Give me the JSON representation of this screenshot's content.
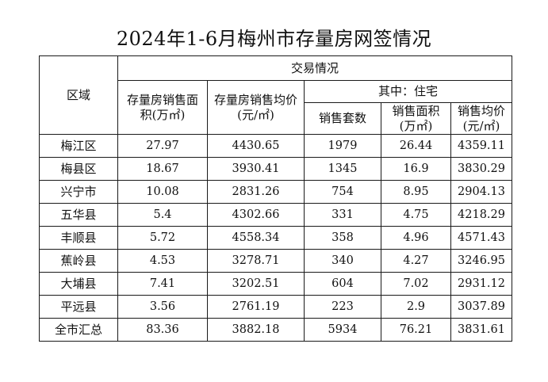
{
  "title": "2024年1-6月梅州市存量房网签情况",
  "headers": {
    "region": "区域",
    "transaction": "交易情况",
    "area": "存量房销售面积(万㎡)",
    "avg_price": "存量房销售均价(元/㎡)",
    "residential": "其中：住宅",
    "units": "销售套数",
    "res_area": "销售面积(万㎡)",
    "res_avg_price": "销售均价(元/㎡)"
  },
  "rows": [
    {
      "region": "梅江区",
      "area": "27.97",
      "avg_price": "4430.65",
      "units": "1979",
      "res_area": "26.44",
      "res_avg_price": "4359.11"
    },
    {
      "region": "梅县区",
      "area": "18.67",
      "avg_price": "3930.41",
      "units": "1345",
      "res_area": "16.9",
      "res_avg_price": "3830.29"
    },
    {
      "region": "兴宁市",
      "area": "10.08",
      "avg_price": "2831.26",
      "units": "754",
      "res_area": "8.95",
      "res_avg_price": "2904.13"
    },
    {
      "region": "五华县",
      "area": "5.4",
      "avg_price": "4302.66",
      "units": "331",
      "res_area": "4.75",
      "res_avg_price": "4218.29"
    },
    {
      "region": "丰顺县",
      "area": "5.72",
      "avg_price": "4558.34",
      "units": "358",
      "res_area": "4.96",
      "res_avg_price": "4571.43"
    },
    {
      "region": "蕉岭县",
      "area": "4.53",
      "avg_price": "3278.71",
      "units": "340",
      "res_area": "4.27",
      "res_avg_price": "3246.95"
    },
    {
      "region": "大埔县",
      "area": "7.41",
      "avg_price": "3202.51",
      "units": "604",
      "res_area": "7.02",
      "res_avg_price": "2931.12"
    },
    {
      "region": "平远县",
      "area": "3.56",
      "avg_price": "2761.19",
      "units": "223",
      "res_area": "2.9",
      "res_avg_price": "3037.89"
    },
    {
      "region": "全市汇总",
      "area": "83.36",
      "avg_price": "3882.18",
      "units": "5934",
      "res_area": "76.21",
      "res_avg_price": "3831.61"
    }
  ]
}
